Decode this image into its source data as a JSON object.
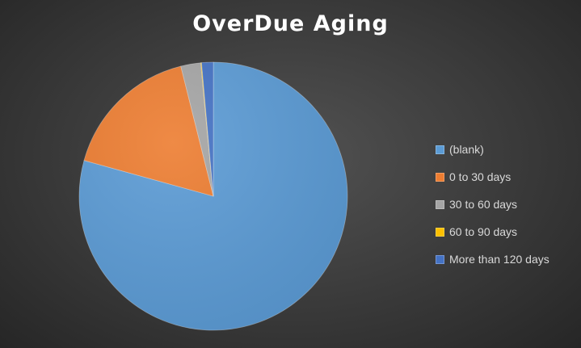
{
  "chart_data": {
    "type": "pie",
    "title": "OverDue Aging",
    "legend_position": "right",
    "slices": [
      {
        "label": "(blank)",
        "value": 79.3,
        "color": "#5b9bd5"
      },
      {
        "label": "0 to 30 days",
        "value": 16.8,
        "color": "#ed7d31"
      },
      {
        "label": "30 to 60 days",
        "value": 2.4,
        "color": "#a5a5a5"
      },
      {
        "label": "60 to 90 days",
        "value": 0.1,
        "color": "#ffc000"
      },
      {
        "label": "More than 120 days",
        "value": 1.4,
        "color": "#4472c4"
      }
    ]
  }
}
